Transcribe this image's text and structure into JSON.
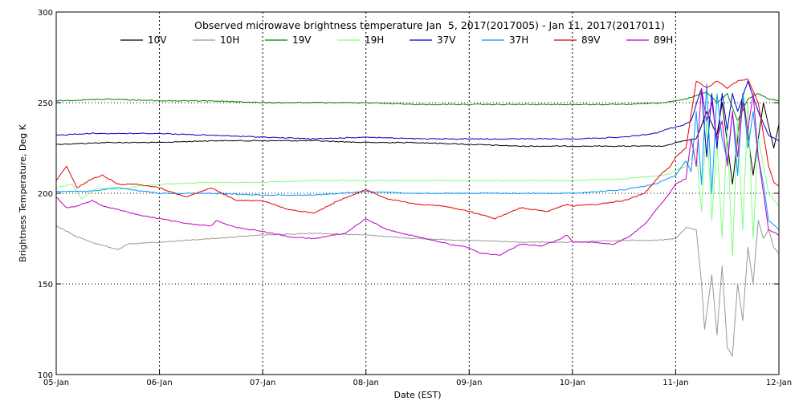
{
  "chart_data": {
    "type": "line",
    "title": "Observed microwave brightness temperature Jan  5, 2017(2017005) - Jan 11, 2017(2017011)",
    "xlabel": "Date (EST)",
    "ylabel": "Brightness Temperature, Deg K",
    "ylim": [
      100,
      300
    ],
    "xlim": [
      0,
      7
    ],
    "y_ticks": [
      100,
      150,
      200,
      250,
      300
    ],
    "x_ticks": [
      {
        "value": 0,
        "label": "05-Jan"
      },
      {
        "value": 1,
        "label": "06-Jan"
      },
      {
        "value": 2,
        "label": "07-Jan"
      },
      {
        "value": 3,
        "label": "08-Jan"
      },
      {
        "value": 4,
        "label": "09-Jan"
      },
      {
        "value": 5,
        "label": "10-Jan"
      },
      {
        "value": 6,
        "label": "11-Jan"
      },
      {
        "value": 7,
        "label": "12-Jan"
      }
    ],
    "grid": "dotted",
    "legend_position": "top",
    "series": [
      {
        "name": "10V",
        "color": "#000000",
        "points": [
          [
            0,
            227
          ],
          [
            0.5,
            228
          ],
          [
            1,
            228
          ],
          [
            1.5,
            229
          ],
          [
            2,
            229
          ],
          [
            2.5,
            229
          ],
          [
            3,
            228
          ],
          [
            3.5,
            228
          ],
          [
            4,
            227
          ],
          [
            4.5,
            226
          ],
          [
            5,
            226
          ],
          [
            5.5,
            226
          ],
          [
            5.9,
            226
          ],
          [
            6.0,
            228
          ],
          [
            6.2,
            230
          ],
          [
            6.3,
            245
          ],
          [
            6.4,
            232
          ],
          [
            6.45,
            250
          ],
          [
            6.55,
            205
          ],
          [
            6.65,
            255
          ],
          [
            6.75,
            210
          ],
          [
            6.85,
            250
          ],
          [
            6.95,
            225
          ],
          [
            7,
            238
          ]
        ]
      },
      {
        "name": "10H",
        "color": "#999999",
        "points": [
          [
            0,
            182
          ],
          [
            0.2,
            176
          ],
          [
            0.4,
            172
          ],
          [
            0.6,
            169
          ],
          [
            0.7,
            172
          ],
          [
            1,
            173
          ],
          [
            1.5,
            175
          ],
          [
            2,
            177
          ],
          [
            2.5,
            178
          ],
          [
            3,
            177
          ],
          [
            3.5,
            175
          ],
          [
            4,
            174
          ],
          [
            4.5,
            173
          ],
          [
            5,
            173
          ],
          [
            5.5,
            174
          ],
          [
            5.8,
            174
          ],
          [
            6.0,
            175
          ],
          [
            6.1,
            181
          ],
          [
            6.2,
            180
          ],
          [
            6.25,
            150
          ],
          [
            6.28,
            125
          ],
          [
            6.35,
            155
          ],
          [
            6.4,
            122
          ],
          [
            6.45,
            160
          ],
          [
            6.5,
            115
          ],
          [
            6.55,
            110
          ],
          [
            6.6,
            150
          ],
          [
            6.65,
            130
          ],
          [
            6.7,
            170
          ],
          [
            6.75,
            150
          ],
          [
            6.8,
            185
          ],
          [
            6.85,
            175
          ],
          [
            6.9,
            180
          ],
          [
            6.95,
            170
          ],
          [
            7,
            167
          ]
        ]
      },
      {
        "name": "19V",
        "color": "#008000",
        "points": [
          [
            0,
            251
          ],
          [
            0.5,
            252
          ],
          [
            1,
            251
          ],
          [
            1.5,
            251
          ],
          [
            2,
            250
          ],
          [
            2.5,
            250
          ],
          [
            3,
            250
          ],
          [
            3.5,
            249
          ],
          [
            4,
            249
          ],
          [
            4.5,
            249
          ],
          [
            5,
            249
          ],
          [
            5.5,
            249
          ],
          [
            5.9,
            250
          ],
          [
            6.1,
            252
          ],
          [
            6.3,
            256
          ],
          [
            6.4,
            250
          ],
          [
            6.5,
            255
          ],
          [
            6.6,
            240
          ],
          [
            6.7,
            252
          ],
          [
            6.8,
            255
          ],
          [
            6.9,
            252
          ],
          [
            7,
            251
          ]
        ]
      },
      {
        "name": "19H",
        "color": "#80ff80",
        "points": [
          [
            0,
            203
          ],
          [
            0.15,
            205
          ],
          [
            0.25,
            197
          ],
          [
            0.4,
            203
          ],
          [
            0.6,
            202
          ],
          [
            0.8,
            204
          ],
          [
            1,
            205
          ],
          [
            1.5,
            206
          ],
          [
            2,
            206
          ],
          [
            2.5,
            207
          ],
          [
            3,
            207
          ],
          [
            3.5,
            207
          ],
          [
            4,
            207
          ],
          [
            4.5,
            207
          ],
          [
            5,
            207
          ],
          [
            5.5,
            208
          ],
          [
            5.9,
            210
          ],
          [
            6.1,
            215
          ],
          [
            6.2,
            225
          ],
          [
            6.25,
            190
          ],
          [
            6.3,
            240
          ],
          [
            6.35,
            185
          ],
          [
            6.4,
            230
          ],
          [
            6.45,
            175
          ],
          [
            6.5,
            235
          ],
          [
            6.55,
            165
          ],
          [
            6.6,
            240
          ],
          [
            6.65,
            180
          ],
          [
            6.7,
            250
          ],
          [
            6.75,
            175
          ],
          [
            6.8,
            230
          ],
          [
            6.9,
            200
          ],
          [
            7,
            193
          ]
        ]
      },
      {
        "name": "37V",
        "color": "#0000c8",
        "points": [
          [
            0,
            232
          ],
          [
            0.3,
            233
          ],
          [
            0.6,
            233
          ],
          [
            1,
            233
          ],
          [
            1.5,
            232
          ],
          [
            2,
            231
          ],
          [
            2.5,
            230
          ],
          [
            3,
            231
          ],
          [
            3.5,
            230
          ],
          [
            4,
            230
          ],
          [
            4.5,
            230
          ],
          [
            5,
            230
          ],
          [
            5.5,
            231
          ],
          [
            5.8,
            233
          ],
          [
            5.95,
            236
          ],
          [
            6.05,
            237
          ],
          [
            6.15,
            240
          ],
          [
            6.25,
            258
          ],
          [
            6.3,
            220
          ],
          [
            6.35,
            255
          ],
          [
            6.4,
            225
          ],
          [
            6.45,
            255
          ],
          [
            6.5,
            235
          ],
          [
            6.55,
            255
          ],
          [
            6.6,
            245
          ],
          [
            6.7,
            262
          ],
          [
            6.8,
            245
          ],
          [
            6.9,
            232
          ],
          [
            7,
            229
          ]
        ]
      },
      {
        "name": "37H",
        "color": "#0096ff",
        "points": [
          [
            0,
            201
          ],
          [
            0.3,
            201
          ],
          [
            0.6,
            203
          ],
          [
            1,
            200
          ],
          [
            1.5,
            200
          ],
          [
            2,
            199
          ],
          [
            2.5,
            199
          ],
          [
            3,
            201
          ],
          [
            3.5,
            200
          ],
          [
            4,
            200
          ],
          [
            4.5,
            200
          ],
          [
            5,
            200
          ],
          [
            5.5,
            202
          ],
          [
            5.8,
            205
          ],
          [
            6,
            210
          ],
          [
            6.1,
            218
          ],
          [
            6.15,
            212
          ],
          [
            6.2,
            245
          ],
          [
            6.25,
            205
          ],
          [
            6.3,
            260
          ],
          [
            6.35,
            200
          ],
          [
            6.4,
            255
          ],
          [
            6.45,
            230
          ],
          [
            6.5,
            218
          ],
          [
            6.55,
            245
          ],
          [
            6.6,
            210
          ],
          [
            6.65,
            255
          ],
          [
            6.7,
            225
          ],
          [
            6.75,
            245
          ],
          [
            6.8,
            220
          ],
          [
            6.85,
            205
          ],
          [
            6.9,
            185
          ],
          [
            7,
            180
          ]
        ]
      },
      {
        "name": "89V",
        "color": "#e00000",
        "points": [
          [
            0,
            207
          ],
          [
            0.1,
            215
          ],
          [
            0.2,
            203
          ],
          [
            0.35,
            208
          ],
          [
            0.45,
            210
          ],
          [
            0.6,
            205
          ],
          [
            0.8,
            205
          ],
          [
            1,
            203
          ],
          [
            1.25,
            198
          ],
          [
            1.5,
            203
          ],
          [
            1.75,
            196
          ],
          [
            2,
            196
          ],
          [
            2.25,
            191
          ],
          [
            2.5,
            189
          ],
          [
            2.7,
            195
          ],
          [
            3,
            202
          ],
          [
            3.2,
            197
          ],
          [
            3.5,
            194
          ],
          [
            3.75,
            193
          ],
          [
            4,
            190
          ],
          [
            4.25,
            186
          ],
          [
            4.5,
            192
          ],
          [
            4.75,
            190
          ],
          [
            4.95,
            194
          ],
          [
            5,
            193
          ],
          [
            5.25,
            194
          ],
          [
            5.5,
            196
          ],
          [
            5.7,
            200
          ],
          [
            5.85,
            210
          ],
          [
            5.95,
            215
          ],
          [
            6,
            220
          ],
          [
            6.1,
            225
          ],
          [
            6.2,
            262
          ],
          [
            6.3,
            258
          ],
          [
            6.4,
            262
          ],
          [
            6.5,
            258
          ],
          [
            6.6,
            262
          ],
          [
            6.7,
            263
          ],
          [
            6.8,
            250
          ],
          [
            6.9,
            215
          ],
          [
            6.95,
            206
          ],
          [
            7,
            204
          ]
        ]
      },
      {
        "name": "89H",
        "color": "#c000c0",
        "points": [
          [
            0,
            198
          ],
          [
            0.1,
            192
          ],
          [
            0.2,
            193
          ],
          [
            0.35,
            196
          ],
          [
            0.45,
            193
          ],
          [
            0.6,
            191
          ],
          [
            0.8,
            188
          ],
          [
            1,
            186
          ],
          [
            1.3,
            183
          ],
          [
            1.5,
            182
          ],
          [
            1.55,
            185
          ],
          [
            1.75,
            181
          ],
          [
            2,
            179
          ],
          [
            2.25,
            176
          ],
          [
            2.5,
            175
          ],
          [
            2.8,
            178
          ],
          [
            3,
            186
          ],
          [
            3.2,
            180
          ],
          [
            3.5,
            176
          ],
          [
            3.8,
            172
          ],
          [
            4,
            170
          ],
          [
            4.1,
            167
          ],
          [
            4.3,
            166
          ],
          [
            4.5,
            172
          ],
          [
            4.7,
            171
          ],
          [
            4.85,
            174
          ],
          [
            4.95,
            177
          ],
          [
            5,
            173
          ],
          [
            5.2,
            173
          ],
          [
            5.4,
            172
          ],
          [
            5.55,
            176
          ],
          [
            5.7,
            183
          ],
          [
            5.8,
            190
          ],
          [
            5.9,
            197
          ],
          [
            6,
            205
          ],
          [
            6.1,
            208
          ],
          [
            6.15,
            230
          ],
          [
            6.2,
            215
          ],
          [
            6.25,
            258
          ],
          [
            6.3,
            240
          ],
          [
            6.35,
            250
          ],
          [
            6.4,
            230
          ],
          [
            6.45,
            240
          ],
          [
            6.5,
            215
          ],
          [
            6.55,
            245
          ],
          [
            6.6,
            220
          ],
          [
            6.65,
            250
          ],
          [
            6.7,
            235
          ],
          [
            6.75,
            255
          ],
          [
            6.8,
            220
          ],
          [
            6.85,
            200
          ],
          [
            6.9,
            180
          ],
          [
            7,
            177
          ]
        ]
      }
    ]
  }
}
